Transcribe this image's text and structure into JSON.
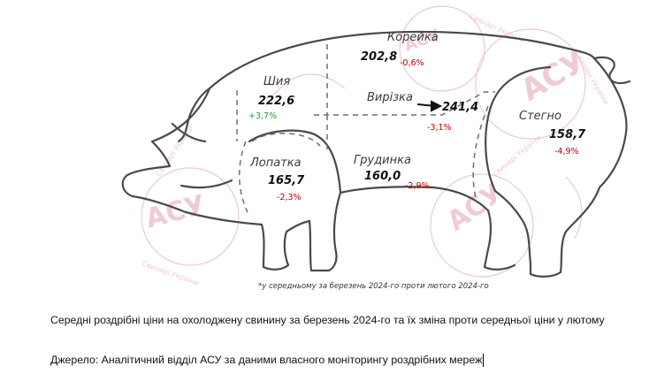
{
  "watermark": {
    "text": "АСУ",
    "arc_text": "Свинарі України",
    "color": "#e8b8c4"
  },
  "colors": {
    "outline": "#555555",
    "down": "#c00000",
    "up": "#1e9e3a"
  },
  "cuts": {
    "neck": {
      "name": "Шия",
      "price": "222,6",
      "change": "+3,7%"
    },
    "loin": {
      "name": "Корейка",
      "price": "202,8",
      "change": "-0,6%"
    },
    "tender": {
      "name": "Вирізка",
      "price": "241,4",
      "change": "-3,1%"
    },
    "shoulder": {
      "name": "Лопатка",
      "price": "165,7",
      "change": "-2,3%"
    },
    "belly": {
      "name": "Грудинка",
      "price": "160,0",
      "change": "-2,9%"
    },
    "ham": {
      "name": "Стегно",
      "price": "158,7",
      "change": "-4,9%"
    }
  },
  "footnote": "*у середньому за березень 2024-го проти лютого 2024-го",
  "caption": "Середні роздрібні ціни на охолоджену свинину за березень 2024-го та їх зміна проти середньої ціни у лютому",
  "source": "Джерело: Аналітичний відділ АСУ за даними власного моніторингу роздрібних мереж"
}
